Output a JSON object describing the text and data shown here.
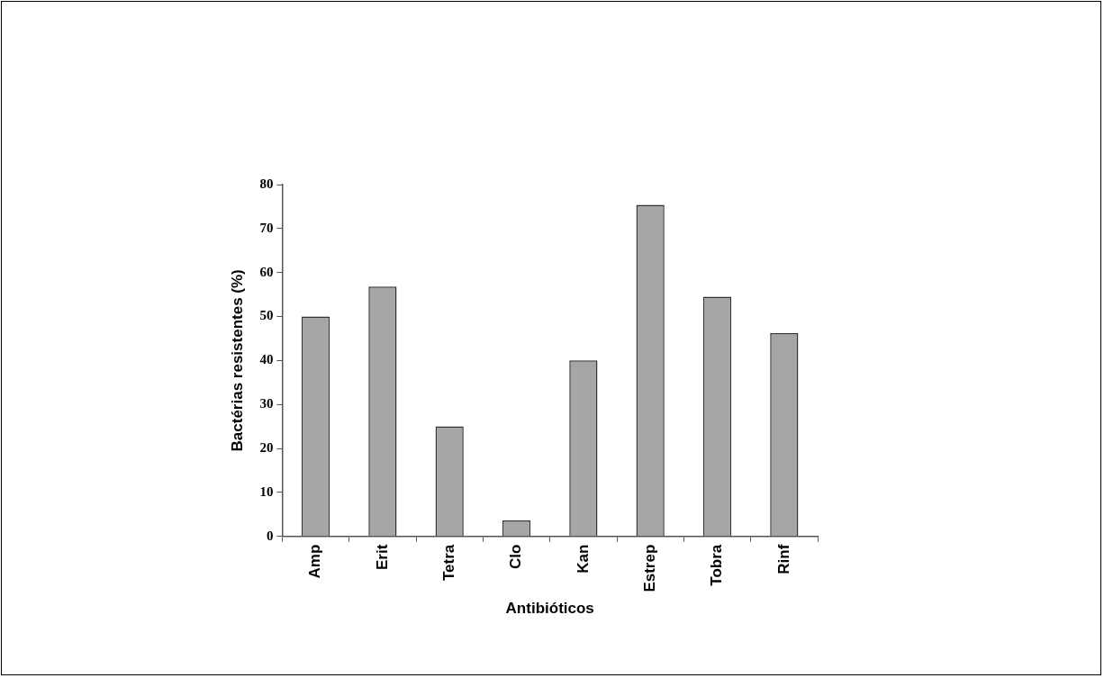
{
  "chart_data": {
    "type": "bar",
    "xlabel": "Antibióticos",
    "ylabel": "Bactérias resistentes (%)",
    "categories": [
      "Amp",
      "Erit",
      "Tetra",
      "Clo",
      "Kan",
      "Estrep",
      "Tobra",
      "Rinf"
    ],
    "values": [
      50,
      56.8,
      25,
      3.6,
      40,
      75.4,
      54.5,
      46.2
    ],
    "color": "#a6a6a6",
    "ylim": [
      0,
      80
    ],
    "yticks": [
      0,
      10,
      20,
      30,
      40,
      50,
      60,
      70,
      80
    ],
    "grid": false,
    "legend": false
  }
}
